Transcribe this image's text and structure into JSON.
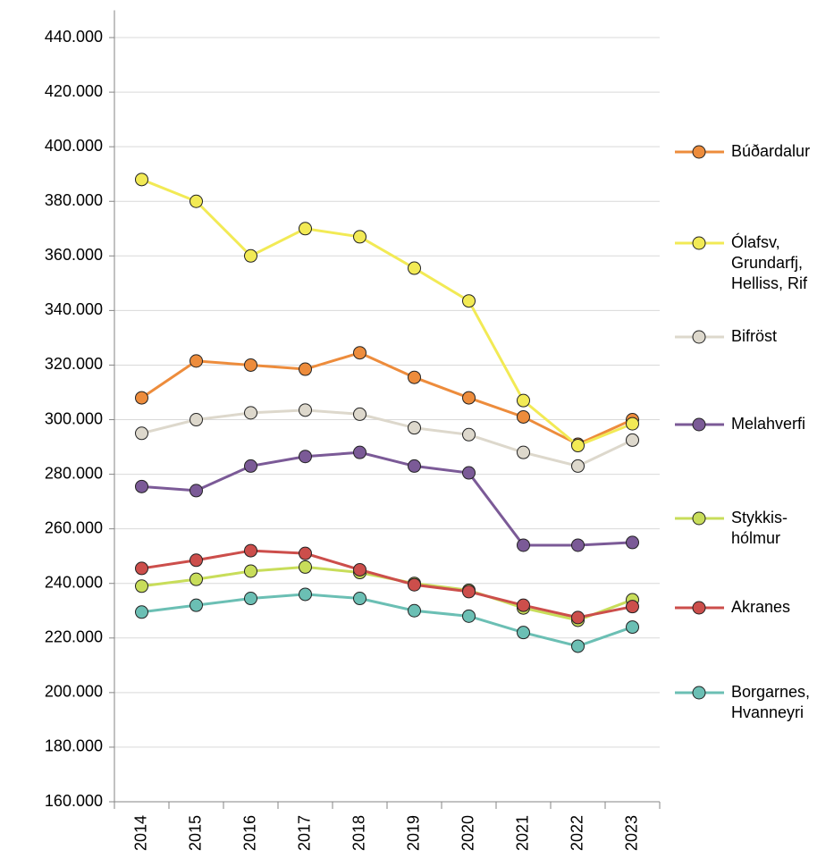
{
  "chart_data": {
    "type": "line",
    "categories": [
      "2014",
      "2015",
      "2016",
      "2017",
      "2018",
      "2019",
      "2020",
      "2021",
      "2022",
      "2023"
    ],
    "ylim": [
      160000,
      450000
    ],
    "yticks": [
      {
        "value": 160000,
        "label": "160.000"
      },
      {
        "value": 180000,
        "label": "180.000"
      },
      {
        "value": 200000,
        "label": "200.000"
      },
      {
        "value": 220000,
        "label": "220.000"
      },
      {
        "value": 240000,
        "label": "240.000"
      },
      {
        "value": 260000,
        "label": "260.000"
      },
      {
        "value": 280000,
        "label": "280.000"
      },
      {
        "value": 300000,
        "label": "300.000"
      },
      {
        "value": 320000,
        "label": "320.000"
      },
      {
        "value": 340000,
        "label": "340.000"
      },
      {
        "value": 360000,
        "label": "360.000"
      },
      {
        "value": 380000,
        "label": "380.000"
      },
      {
        "value": 400000,
        "label": "400.000"
      },
      {
        "value": 420000,
        "label": "420.000"
      },
      {
        "value": 440000,
        "label": "440.000"
      }
    ],
    "grid": true,
    "legend": "right",
    "series": [
      {
        "name": "Búðardalur",
        "color": "#ed8c3c",
        "values": [
          308000,
          321500,
          320000,
          318500,
          324500,
          315500,
          308000,
          301000,
          291000,
          300000
        ]
      },
      {
        "name": "Ólafsv, Grundarfj, Helliss, Rif",
        "color": "#f2ea55",
        "values": [
          388000,
          380000,
          360000,
          370000,
          367000,
          355500,
          343500,
          307000,
          290500,
          298500
        ]
      },
      {
        "name": "Bifröst",
        "color": "#ddd8cc",
        "values": [
          295000,
          300000,
          302500,
          303500,
          302000,
          297000,
          294500,
          288000,
          283000,
          292500
        ]
      },
      {
        "name": "Melahverfi",
        "color": "#7b5a97",
        "values": [
          275500,
          274000,
          283000,
          286500,
          288000,
          283000,
          280500,
          254000,
          254000,
          255000
        ]
      },
      {
        "name": "Stykkis-hólmur",
        "color": "#c8dd5a",
        "values": [
          239000,
          241500,
          244500,
          246000,
          244000,
          240000,
          237500,
          231000,
          226500,
          234000
        ]
      },
      {
        "name": "Akranes",
        "color": "#cc4e4b",
        "values": [
          245500,
          248500,
          252000,
          251000,
          245000,
          239500,
          237000,
          232000,
          227500,
          231500
        ]
      },
      {
        "name": "Borgarnes, Hvanneyri",
        "color": "#6bbfb4",
        "values": [
          229500,
          232000,
          234500,
          236000,
          234500,
          230000,
          228000,
          222000,
          217000,
          224000
        ]
      }
    ]
  }
}
